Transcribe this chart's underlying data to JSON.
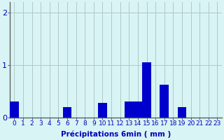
{
  "categories": [
    0,
    1,
    2,
    3,
    4,
    5,
    6,
    7,
    8,
    9,
    10,
    11,
    12,
    13,
    14,
    15,
    16,
    17,
    18,
    19,
    20,
    21,
    22,
    23
  ],
  "values": [
    0.3,
    0.0,
    0.0,
    0.0,
    0.0,
    0.0,
    0.2,
    0.0,
    0.0,
    0.0,
    0.28,
    0.0,
    0.0,
    0.3,
    0.3,
    1.05,
    0.0,
    0.62,
    0.0,
    0.2,
    0.0,
    0.0,
    0.0,
    0.0
  ],
  "bar_color": "#0000cc",
  "background_color": "#d8f4f4",
  "grid_color": "#b0c8c8",
  "text_color": "#0000bb",
  "xlabel": "Précipitations 6min ( mm )",
  "ylim": [
    0,
    2.2
  ],
  "yticks": [
    0,
    1,
    2
  ],
  "xlabel_fontsize": 7.5,
  "tick_fontsize": 6.5,
  "bar_width": 1.0
}
